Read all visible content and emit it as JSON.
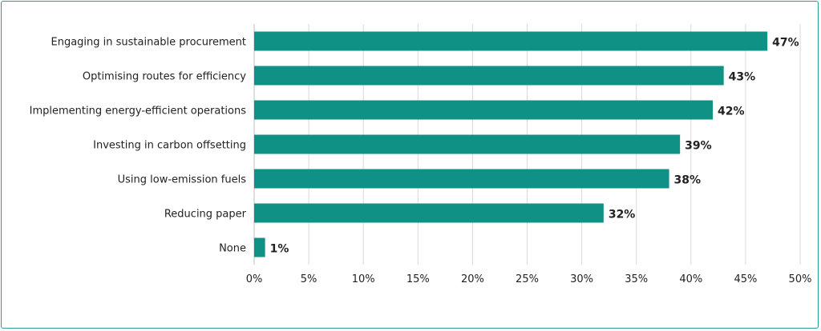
{
  "chart_data": {
    "type": "bar",
    "orientation": "horizontal",
    "title": "",
    "xlabel": "",
    "ylabel": "",
    "categories": [
      "Engaging in sustainable procurement",
      "Optimising routes for efficiency",
      "Implementing energy-efficient operations",
      "Investing in carbon offsetting",
      "Using low-emission fuels",
      "Reducing paper",
      "None"
    ],
    "values": [
      47,
      43,
      42,
      39,
      38,
      32,
      1
    ],
    "value_labels": [
      "47%",
      "43%",
      "42%",
      "39%",
      "38%",
      "32%",
      "1%"
    ],
    "xlim": [
      0,
      50
    ],
    "x_ticks": [
      "0%",
      "5%",
      "10%",
      "15%",
      "20%",
      "25%",
      "30%",
      "35%",
      "40%",
      "45%",
      "50%"
    ],
    "grid": "vertical",
    "legend": "none",
    "colors": {
      "bar": "#0f9186",
      "frame": "#2a9d93"
    }
  }
}
